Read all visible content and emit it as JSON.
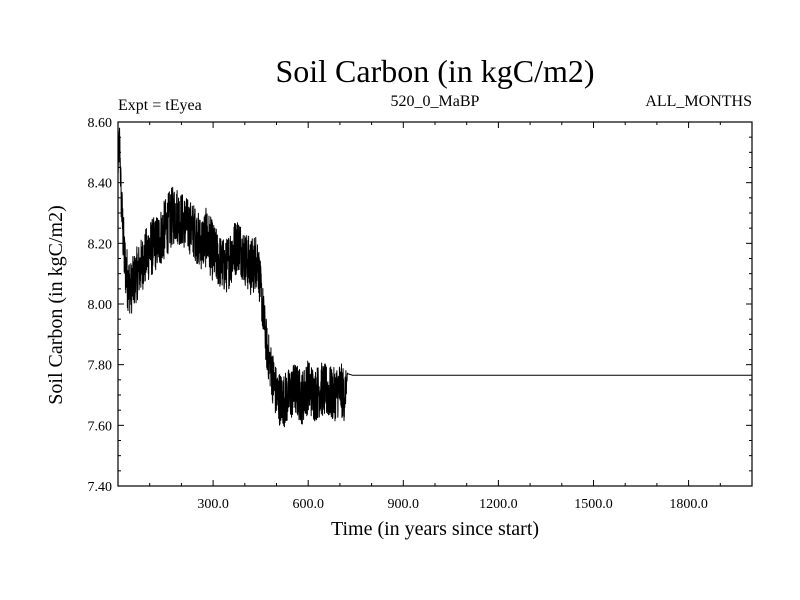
{
  "chart_data": {
    "type": "line",
    "title": "Soil Carbon (in kgC/m2)",
    "left_subtitle": "Expt = tEyea",
    "center_subtitle": "520_0_MaBP",
    "right_subtitle": "ALL_MONTHS",
    "xlabel": "Time (in years since start)",
    "ylabel": "Soil Carbon (in kgC/m2)",
    "xlim": [
      0,
      2000
    ],
    "ylim": [
      7.4,
      8.6
    ],
    "x_ticks": [
      300,
      600,
      900,
      1200,
      1500,
      1800
    ],
    "x_tick_labels": [
      "300.0",
      "600.0",
      "900.0",
      "1200.0",
      "1500.0",
      "1800.0"
    ],
    "y_ticks": [
      7.4,
      7.6,
      7.8,
      8.0,
      8.2,
      8.4,
      8.6
    ],
    "y_tick_labels": [
      "7.40",
      "7.60",
      "7.80",
      "8.00",
      "8.20",
      "8.40",
      "8.60"
    ],
    "grid": false,
    "series": [
      {
        "color": "#000000",
        "x": [
          0,
          5,
          10,
          15,
          20,
          30,
          40,
          60,
          80,
          100,
          120,
          140,
          160,
          180,
          200,
          220,
          240,
          260,
          280,
          300,
          320,
          340,
          360,
          380,
          400,
          420,
          440,
          450,
          460,
          470,
          480,
          490,
          500,
          520,
          540,
          560,
          580,
          600,
          620,
          640,
          660,
          680,
          700,
          715,
          725,
          740,
          1000,
          1500,
          2000
        ],
        "y": [
          8.45,
          8.55,
          8.35,
          8.25,
          8.15,
          8.08,
          8.05,
          8.1,
          8.14,
          8.18,
          8.2,
          8.23,
          8.27,
          8.3,
          8.28,
          8.26,
          8.24,
          8.2,
          8.22,
          8.17,
          8.14,
          8.12,
          8.17,
          8.2,
          8.15,
          8.12,
          8.15,
          8.05,
          7.95,
          7.85,
          7.8,
          7.75,
          7.7,
          7.68,
          7.7,
          7.72,
          7.69,
          7.73,
          7.7,
          7.72,
          7.71,
          7.7,
          7.72,
          7.7,
          7.77,
          7.765,
          7.765,
          7.765,
          7.765
        ],
        "band": [
          0.07,
          0.06,
          0.08,
          0.1,
          0.1,
          0.1,
          0.09,
          0.09,
          0.09,
          0.1,
          0.09,
          0.1,
          0.1,
          0.1,
          0.09,
          0.09,
          0.09,
          0.09,
          0.1,
          0.1,
          0.09,
          0.09,
          0.1,
          0.09,
          0.09,
          0.1,
          0.09,
          0.08,
          0.08,
          0.08,
          0.08,
          0.09,
          0.09,
          0.09,
          0.09,
          0.09,
          0.09,
          0.09,
          0.09,
          0.09,
          0.09,
          0.09,
          0.09,
          0.09,
          0.0,
          0.0,
          0.0,
          0.0,
          0.0
        ]
      }
    ]
  }
}
